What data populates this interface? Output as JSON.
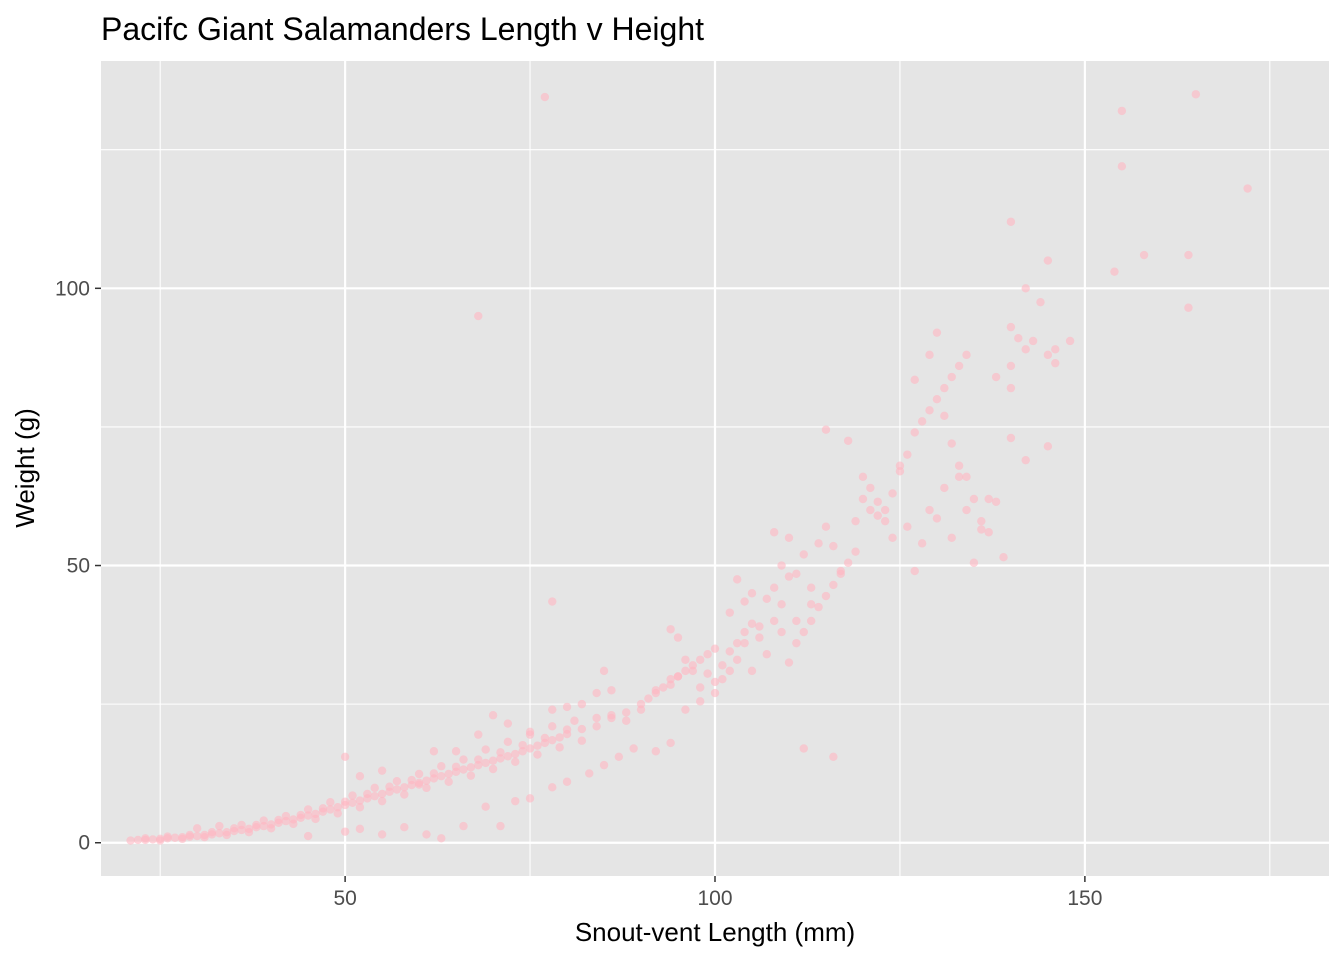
{
  "chart_data": {
    "type": "scatter",
    "title": "Pacifc Giant Salamanders Length v Height",
    "xlabel": "Snout-vent Length (mm)",
    "ylabel": "Weight (g)",
    "xlim": [
      17,
      183
    ],
    "ylim": [
      -6,
      141
    ],
    "x_ticks": [
      50,
      100,
      150
    ],
    "x_minor_ticks": [
      25,
      75,
      125,
      175
    ],
    "y_ticks": [
      0,
      50,
      100
    ],
    "y_minor_ticks": [
      25,
      75,
      125
    ],
    "grid": true,
    "legend": "none",
    "panel_color": "#e5e5e5",
    "grid_color": "#ffffff",
    "point_color": "#ffb6c1",
    "point_opacity": 0.6,
    "series": [
      {
        "points": [
          [
            21,
            0.4
          ],
          [
            22,
            0.5
          ],
          [
            23,
            0.5
          ],
          [
            24,
            0.6
          ],
          [
            25,
            0.7
          ],
          [
            26,
            0.8
          ],
          [
            27,
            0.9
          ],
          [
            28,
            1.0
          ],
          [
            29,
            1.1
          ],
          [
            30,
            1.2
          ],
          [
            31,
            1.4
          ],
          [
            32,
            1.5
          ],
          [
            33,
            1.7
          ],
          [
            34,
            1.9
          ],
          [
            35,
            2.1
          ],
          [
            36,
            2.3
          ],
          [
            37,
            2.5
          ],
          [
            38,
            2.8
          ],
          [
            39,
            3.0
          ],
          [
            40,
            3.3
          ],
          [
            41,
            3.6
          ],
          [
            42,
            3.9
          ],
          [
            43,
            4.2
          ],
          [
            44,
            4.5
          ],
          [
            45,
            4.9
          ],
          [
            46,
            5.2
          ],
          [
            47,
            5.6
          ],
          [
            48,
            6.0
          ],
          [
            49,
            6.4
          ],
          [
            50,
            6.8
          ],
          [
            51,
            7.2
          ],
          [
            52,
            7.6
          ],
          [
            53,
            8.0
          ],
          [
            54,
            8.4
          ],
          [
            55,
            8.8
          ],
          [
            56,
            9.2
          ],
          [
            57,
            9.6
          ],
          [
            58,
            10.0
          ],
          [
            59,
            10.4
          ],
          [
            60,
            10.8
          ],
          [
            61,
            11.2
          ],
          [
            62,
            11.6
          ],
          [
            63,
            12.0
          ],
          [
            64,
            12.4
          ],
          [
            65,
            12.8
          ],
          [
            66,
            13.2
          ],
          [
            67,
            13.6
          ],
          [
            68,
            14.0
          ],
          [
            69,
            14.4
          ],
          [
            70,
            14.8
          ],
          [
            71,
            15.2
          ],
          [
            72,
            15.6
          ],
          [
            73,
            16.0
          ],
          [
            74,
            16.5
          ],
          [
            75,
            17.0
          ],
          [
            76,
            17.5
          ],
          [
            77,
            18.0
          ],
          [
            78,
            18.5
          ],
          [
            79,
            19.0
          ],
          [
            80,
            19.6
          ],
          [
            23,
            0.8
          ],
          [
            26,
            1.1
          ],
          [
            29,
            1.4
          ],
          [
            32,
            1.9
          ],
          [
            35,
            2.6
          ],
          [
            38,
            3.2
          ],
          [
            41,
            4.1
          ],
          [
            44,
            5.0
          ],
          [
            47,
            6.2
          ],
          [
            50,
            7.4
          ],
          [
            53,
            8.8
          ],
          [
            56,
            10.1
          ],
          [
            59,
            11.3
          ],
          [
            62,
            12.5
          ],
          [
            65,
            13.7
          ],
          [
            68,
            15.0
          ],
          [
            71,
            16.3
          ],
          [
            74,
            17.6
          ],
          [
            77,
            18.9
          ],
          [
            80,
            20.4
          ],
          [
            25,
            0.4
          ],
          [
            28,
            0.7
          ],
          [
            31,
            1.0
          ],
          [
            34,
            1.4
          ],
          [
            37,
            1.9
          ],
          [
            40,
            2.6
          ],
          [
            43,
            3.4
          ],
          [
            46,
            4.3
          ],
          [
            49,
            5.3
          ],
          [
            52,
            6.4
          ],
          [
            55,
            7.5
          ],
          [
            58,
            8.7
          ],
          [
            61,
            9.9
          ],
          [
            64,
            11.0
          ],
          [
            67,
            12.1
          ],
          [
            70,
            13.3
          ],
          [
            73,
            14.6
          ],
          [
            76,
            15.9
          ],
          [
            79,
            17.2
          ],
          [
            82,
            18.4
          ],
          [
            30,
            2.6
          ],
          [
            33,
            3.0
          ],
          [
            36,
            3.2
          ],
          [
            39,
            4.0
          ],
          [
            42,
            4.8
          ],
          [
            45,
            6.0
          ],
          [
            48,
            7.3
          ],
          [
            51,
            8.5
          ],
          [
            54,
            9.9
          ],
          [
            57,
            11.1
          ],
          [
            60,
            12.4
          ],
          [
            63,
            13.8
          ],
          [
            66,
            15.0
          ],
          [
            69,
            16.8
          ],
          [
            72,
            18.2
          ],
          [
            75,
            19.5
          ],
          [
            78,
            21.0
          ],
          [
            81,
            22.0
          ],
          [
            84,
            22.5
          ],
          [
            86,
            23.0
          ],
          [
            45,
            1.2
          ],
          [
            50,
            2.0
          ],
          [
            52,
            2.5
          ],
          [
            55,
            1.5
          ],
          [
            58,
            2.8
          ],
          [
            61,
            1.5
          ],
          [
            63,
            0.8
          ],
          [
            66,
            3.0
          ],
          [
            69,
            6.5
          ],
          [
            71,
            3.0
          ],
          [
            73,
            7.5
          ],
          [
            75,
            8.0
          ],
          [
            78,
            10.0
          ],
          [
            80,
            11.0
          ],
          [
            83,
            12.5
          ],
          [
            85,
            14.0
          ],
          [
            87,
            15.5
          ],
          [
            89,
            17.0
          ],
          [
            92,
            16.5
          ],
          [
            94,
            18.0
          ],
          [
            50,
            15.5
          ],
          [
            52,
            12.0
          ],
          [
            55,
            13.0
          ],
          [
            60,
            10.5
          ],
          [
            62,
            16.5
          ],
          [
            65,
            16.5
          ],
          [
            68,
            19.5
          ],
          [
            70,
            23.0
          ],
          [
            72,
            21.5
          ],
          [
            75,
            20.0
          ],
          [
            78,
            24.0
          ],
          [
            80,
            24.5
          ],
          [
            82,
            25.0
          ],
          [
            84,
            27.0
          ],
          [
            85,
            31.0
          ],
          [
            86,
            27.5
          ],
          [
            88,
            22.0
          ],
          [
            90,
            24.0
          ],
          [
            92,
            27.0
          ],
          [
            94,
            28.5
          ],
          [
            82,
            20.5
          ],
          [
            84,
            21.0
          ],
          [
            86,
            22.5
          ],
          [
            88,
            23.5
          ],
          [
            90,
            25.0
          ],
          [
            91,
            26.0
          ],
          [
            92,
            27.5
          ],
          [
            93,
            28.0
          ],
          [
            94,
            29.5
          ],
          [
            95,
            30.0
          ],
          [
            96,
            31.0
          ],
          [
            97,
            32.0
          ],
          [
            98,
            33.0
          ],
          [
            99,
            34.0
          ],
          [
            100,
            35.0
          ],
          [
            101,
            32.0
          ],
          [
            102,
            34.5
          ],
          [
            103,
            36.0
          ],
          [
            104,
            38.0
          ],
          [
            105,
            39.5
          ],
          [
            94,
            38.5
          ],
          [
            95,
            37.0
          ],
          [
            96,
            33.0
          ],
          [
            97,
            31.0
          ],
          [
            98,
            28.0
          ],
          [
            99,
            30.5
          ],
          [
            100,
            27.0
          ],
          [
            101,
            29.5
          ],
          [
            102,
            31.0
          ],
          [
            103,
            33.0
          ],
          [
            95,
            30.0
          ],
          [
            96,
            24.0
          ],
          [
            98,
            25.5
          ],
          [
            100,
            29.0
          ],
          [
            104,
            36.0
          ],
          [
            105,
            31.0
          ],
          [
            106,
            37.0
          ],
          [
            107,
            34.0
          ],
          [
            108,
            40.0
          ],
          [
            109,
            38.0
          ],
          [
            102,
            41.5
          ],
          [
            103,
            47.5
          ],
          [
            104,
            43.5
          ],
          [
            105,
            45.0
          ],
          [
            106,
            39.0
          ],
          [
            107,
            44.0
          ],
          [
            108,
            46.0
          ],
          [
            109,
            43.0
          ],
          [
            110,
            48.0
          ],
          [
            111,
            40.0
          ],
          [
            108,
            56.0
          ],
          [
            109,
            50.0
          ],
          [
            110,
            55.0
          ],
          [
            111,
            48.5
          ],
          [
            112,
            52.0
          ],
          [
            113,
            46.0
          ],
          [
            114,
            54.0
          ],
          [
            115,
            57.0
          ],
          [
            116,
            53.5
          ],
          [
            117,
            49.0
          ],
          [
            110,
            32.5
          ],
          [
            111,
            36.0
          ],
          [
            112,
            38.0
          ],
          [
            113,
            40.0
          ],
          [
            114,
            42.5
          ],
          [
            115,
            44.5
          ],
          [
            116,
            46.5
          ],
          [
            117,
            48.5
          ],
          [
            118,
            50.5
          ],
          [
            119,
            52.5
          ],
          [
            112,
            17.0
          ],
          [
            115,
            74.5
          ],
          [
            116,
            15.5
          ],
          [
            118,
            72.5
          ],
          [
            119,
            58.0
          ],
          [
            120,
            62.0
          ],
          [
            121,
            64.0
          ],
          [
            122,
            59.0
          ],
          [
            123,
            60.0
          ],
          [
            124,
            63.0
          ],
          [
            120,
            66.0
          ],
          [
            121,
            60.0
          ],
          [
            122,
            61.5
          ],
          [
            123,
            58.0
          ],
          [
            124,
            55.0
          ],
          [
            125,
            67.0
          ],
          [
            126,
            57.0
          ],
          [
            127,
            49.0
          ],
          [
            128,
            54.0
          ],
          [
            129,
            60.0
          ],
          [
            125,
            68.0
          ],
          [
            126,
            70.0
          ],
          [
            127,
            74.0
          ],
          [
            128,
            76.0
          ],
          [
            129,
            78.0
          ],
          [
            130,
            80.0
          ],
          [
            131,
            82.0
          ],
          [
            132,
            84.0
          ],
          [
            133,
            86.0
          ],
          [
            134,
            88.0
          ],
          [
            127,
            83.5
          ],
          [
            129,
            88.0
          ],
          [
            130,
            92.0
          ],
          [
            131,
            77.0
          ],
          [
            132,
            72.0
          ],
          [
            133,
            68.0
          ],
          [
            134,
            66.0
          ],
          [
            135,
            62.0
          ],
          [
            136,
            58.0
          ],
          [
            137,
            56.0
          ],
          [
            130,
            58.5
          ],
          [
            131,
            64.0
          ],
          [
            132,
            55.0
          ],
          [
            133,
            66.0
          ],
          [
            134,
            60.0
          ],
          [
            135,
            50.5
          ],
          [
            136,
            56.5
          ],
          [
            137,
            62.0
          ],
          [
            138,
            61.5
          ],
          [
            139,
            51.5
          ],
          [
            138,
            84.0
          ],
          [
            140,
            93.0
          ],
          [
            140,
            86.0
          ],
          [
            141,
            91.0
          ],
          [
            142,
            89.0
          ],
          [
            142,
            100.0
          ],
          [
            143,
            90.5
          ],
          [
            144,
            97.5
          ],
          [
            145,
            88.0
          ],
          [
            146,
            86.5
          ],
          [
            140,
            73.0
          ],
          [
            140,
            82.0
          ],
          [
            142,
            69.0
          ],
          [
            145,
            71.5
          ],
          [
            146,
            89.0
          ],
          [
            148,
            90.5
          ],
          [
            140,
            112.0
          ],
          [
            145,
            105.0
          ],
          [
            154,
            103.0
          ],
          [
            155,
            132.0
          ],
          [
            155,
            122.0
          ],
          [
            158,
            106.0
          ],
          [
            164,
            106.0
          ],
          [
            164,
            96.5
          ],
          [
            165,
            135.0
          ],
          [
            172,
            118.0
          ],
          [
            77,
            134.5
          ],
          [
            68,
            95.0
          ],
          [
            78,
            43.5
          ],
          [
            113,
            43.0
          ]
        ]
      }
    ]
  }
}
